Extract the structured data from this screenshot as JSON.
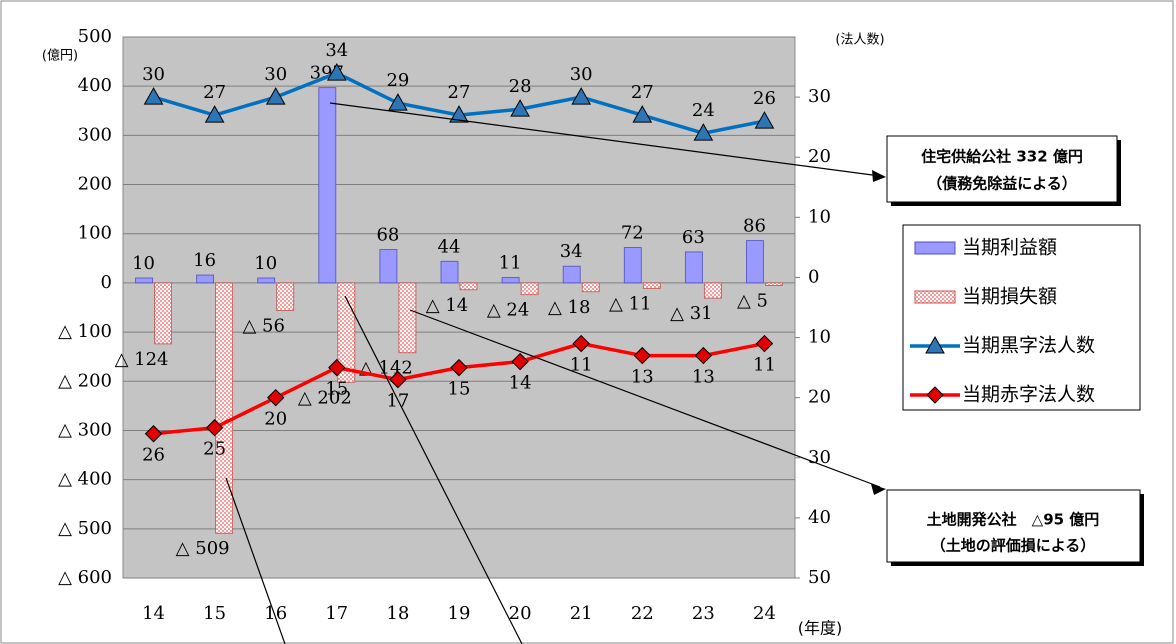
{
  "chart_data": {
    "type": "combo",
    "ylabel": "(億円)",
    "y2label": "(法人数)",
    "xlabel": "(年度)",
    "categories": [
      "14",
      "15",
      "16",
      "17",
      "18",
      "19",
      "20",
      "21",
      "22",
      "23",
      "24"
    ],
    "ylim": [
      -600,
      500
    ],
    "yticks": [
      500,
      400,
      300,
      200,
      100,
      0,
      {
        "value": -100,
        "label": "△ 100"
      },
      {
        "value": -200,
        "label": "△ 200"
      },
      {
        "value": -300,
        "label": "△ 300"
      },
      {
        "value": -400,
        "label": "△ 400"
      },
      {
        "value": -500,
        "label": "△ 500"
      },
      {
        "value": -600,
        "label": "△ 600"
      }
    ],
    "y2lim": [
      -50,
      40
    ],
    "y2ticks": [
      30,
      20,
      10,
      0,
      {
        "value": -10,
        "label": "10"
      },
      {
        "value": -20,
        "label": "20"
      },
      {
        "value": -30,
        "label": "30"
      },
      {
        "value": -40,
        "label": "40"
      },
      {
        "value": -50,
        "label": "50"
      }
    ],
    "grid": true,
    "series": [
      {
        "name": "当期利益額",
        "type": "bar",
        "color": "#9999ff",
        "axis": "y",
        "values": [
          10,
          16,
          10,
          397,
          68,
          44,
          11,
          34,
          72,
          63,
          86
        ]
      },
      {
        "name": "当期損失額",
        "type": "bar",
        "color": "#ff9999",
        "axis": "y",
        "hatched": true,
        "values": [
          -124,
          -509,
          -56,
          -202,
          -142,
          -14,
          -24,
          -18,
          -11,
          -31,
          -5
        ],
        "value_labels": [
          "△ 124",
          "△ 509",
          "△ 56",
          "△ 202",
          "△ 142",
          "△ 14",
          "△ 24",
          "△ 18",
          "△ 11",
          "△ 31",
          "△ 5"
        ]
      },
      {
        "name": "当期黒字法人数",
        "type": "line",
        "color": "#0070c0",
        "marker": "triangle",
        "marker_color": "#2e75b6",
        "axis": "y2",
        "values": [
          30,
          27,
          30,
          34,
          29,
          27,
          28,
          30,
          27,
          24,
          26
        ]
      },
      {
        "name": "当期赤字法人数",
        "type": "line",
        "color": "#ff0000",
        "marker": "diamond",
        "marker_color": "#e00000",
        "axis": "y2",
        "values": [
          -26,
          -25,
          -20,
          -15,
          -17,
          -15,
          -14,
          -11,
          -13,
          -13,
          -11
        ],
        "value_labels": [
          "26",
          "25",
          "20",
          "15",
          "17",
          "15",
          "14",
          "11",
          "13",
          "13",
          "11"
        ]
      }
    ],
    "annotations": [
      {
        "lines": [
          "住宅供給公社 332 億円",
          "（債務免除益による）"
        ]
      },
      {
        "lines": [
          "土地開発公社　△95 億円",
          "（土地の評価損による）"
        ]
      }
    ]
  }
}
